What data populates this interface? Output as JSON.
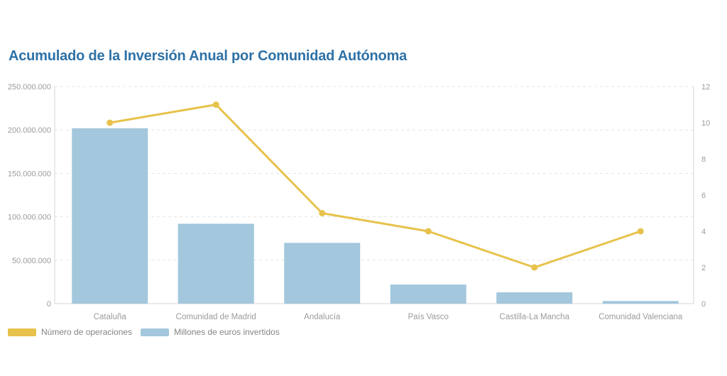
{
  "page": {
    "title": "Acumulado de la Inversión Anual por Comunidad Autónoma"
  },
  "colors": {
    "title": "#2e71a6",
    "bar": "#a3c7dc",
    "line": "#e7c24b",
    "axis_text": "#9b9b9b",
    "grid": "#e4e4e4",
    "axis_line": "#d6d6d6",
    "legend_text": "#858585"
  },
  "chart_data": {
    "type": "bar",
    "title": "Acumulado de la Inversión Anual por Comunidad Autónoma",
    "categories": [
      "Cataluña",
      "Comunidad de Madrid",
      "Andalucía",
      "País Vasco",
      "Castilla-La Mancha",
      "Comunidad Valenciana"
    ],
    "series": [
      {
        "name": "Número de operaciones",
        "type": "line",
        "axis": "right",
        "color": "#e7c24b",
        "values": [
          10,
          11,
          5,
          4,
          2,
          4
        ]
      },
      {
        "name": "Millones de euros invertidos",
        "type": "bar",
        "axis": "left",
        "color": "#a3c7dc",
        "values": [
          202000000,
          92000000,
          70000000,
          22000000,
          13000000,
          3000000
        ]
      }
    ],
    "left_axis": {
      "range": [
        0,
        250000000
      ],
      "ticks": [
        "250.000.000",
        "200.000.000",
        "150.000.000",
        "100.000.000",
        "50.000.000",
        "0"
      ]
    },
    "right_axis": {
      "range": [
        0,
        12
      ],
      "ticks": [
        "12",
        "10",
        "8",
        "6",
        "4",
        "2",
        "0"
      ]
    },
    "grid": true,
    "legend_position": "bottom-left"
  },
  "legend": {
    "items": [
      {
        "label": "Número de operaciones",
        "color": "#e7c24b"
      },
      {
        "label": "Millones de euros invertidos",
        "color": "#a3c7dc"
      }
    ]
  }
}
